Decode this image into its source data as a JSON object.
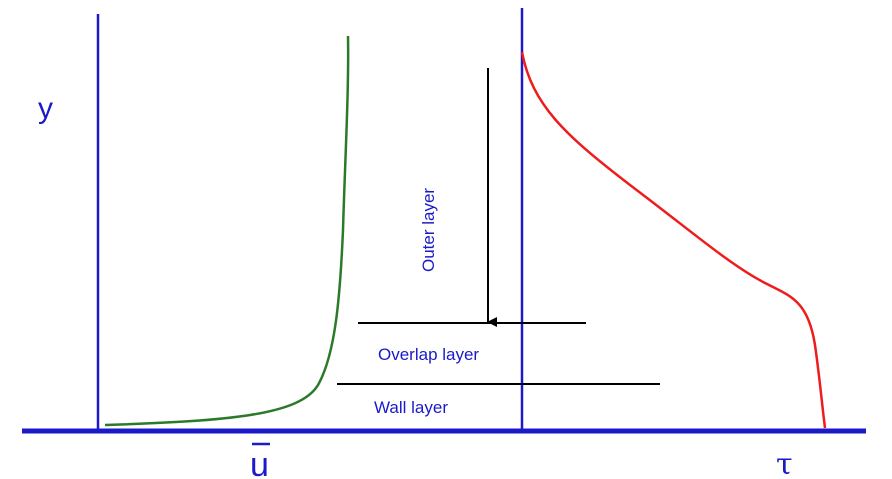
{
  "labels": {
    "y_axis": "y",
    "u_axis": "u",
    "tau_axis": "τ",
    "outer_layer": "Outer layer",
    "overlap_layer": "Overlap layer",
    "wall_layer": "Wall layer"
  },
  "colors": {
    "axes": "#1a1ac8",
    "velocity_profile": "#2a7a2a",
    "shear_stress_profile": "#ee1c1c",
    "layer_lines": "#000000",
    "text": "#1a1ac8"
  }
}
